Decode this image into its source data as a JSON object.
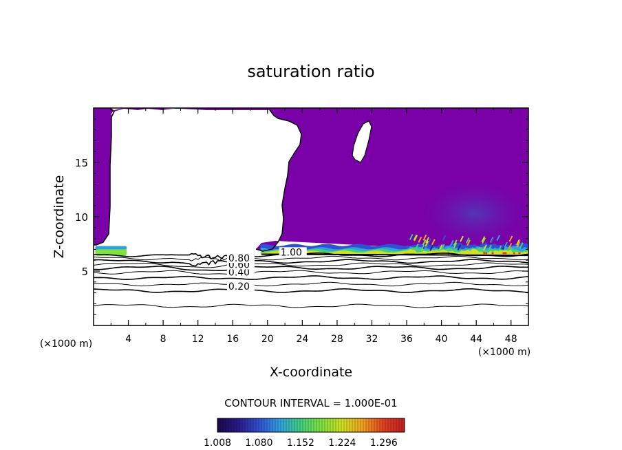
{
  "chart_data": {
    "type": "heatmap",
    "title": "saturation ratio",
    "xlabel": "X-coordinate",
    "ylabel": "Z-coordinate",
    "x_unit_left": "(×1000 m)",
    "x_unit_right": "(×1000 m)",
    "xlim": [
      0,
      50
    ],
    "ylim": [
      0,
      20
    ],
    "x_ticks": [
      4,
      8,
      12,
      16,
      20,
      24,
      28,
      32,
      36,
      40,
      44,
      48
    ],
    "x_tick_labels": [
      "4",
      "8",
      "12",
      "16",
      "20",
      "24",
      "28",
      "32",
      "36",
      "40",
      "44",
      "48"
    ],
    "y_ticks": [
      5,
      10,
      15
    ],
    "y_tick_labels": [
      "5",
      "10",
      "15"
    ],
    "contour_interval_text": "CONTOUR INTERVAL = 1.000E-01",
    "contour_levels": [
      0.1,
      0.2,
      0.3,
      0.4,
      0.5,
      0.6,
      0.7,
      0.8,
      0.9,
      1.0
    ],
    "contour_base_heights": [
      1.8,
      3.2,
      3.8,
      4.4,
      4.9,
      5.3,
      5.6,
      5.9,
      6.2,
      6.5
    ],
    "contour_label_texts": [
      "0.20",
      "0.40",
      "0.60",
      "0.80",
      "1.00"
    ],
    "contour_label_positions": [
      [
        15.5,
        3.35
      ],
      [
        15.5,
        4.65
      ],
      [
        15.5,
        5.35
      ],
      [
        15.5,
        5.95
      ],
      [
        21.5,
        6.5
      ]
    ],
    "colorbar": {
      "min": 1.008,
      "max": 1.332,
      "tick_labels": [
        "1.008",
        "1.080",
        "1.152",
        "1.224",
        "1.296"
      ],
      "colors": [
        "#1a0a4a",
        "#2b1a8a",
        "#3050d0",
        "#30a0e0",
        "#40d080",
        "#80e040",
        "#d0e020",
        "#f0a020",
        "#e04020",
        "#c02020"
      ]
    },
    "fill_color": "#7a00a8",
    "fill_color_dark": "#5a30b0",
    "fill_color_mid": "#6020b0"
  }
}
